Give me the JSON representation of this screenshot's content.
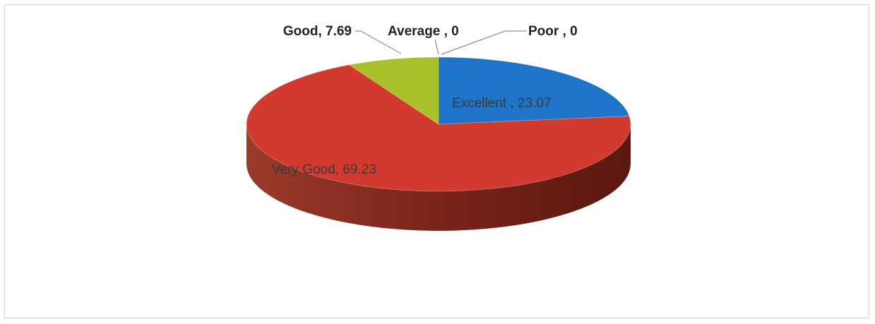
{
  "chart_data": {
    "type": "pie",
    "title": "",
    "three_d": true,
    "slices": [
      {
        "category": "Excellent",
        "value": 23.07,
        "label": "Excellent , 23.07",
        "color": "#1f74c9"
      },
      {
        "category": "Very Good",
        "value": 69.23,
        "label": "Very Good, 69.23",
        "color": "#d23a30"
      },
      {
        "category": "Good",
        "value": 7.69,
        "label": "Good, 7.69",
        "color": "#a8c02a"
      },
      {
        "category": "Average",
        "value": 0,
        "label": "Average , 0",
        "color": "#7f5fb0"
      },
      {
        "category": "Poor",
        "value": 0,
        "label": "Poor , 0",
        "color": "#2fa3b8"
      }
    ],
    "legend": "none",
    "side_color": "#8c2a20"
  }
}
